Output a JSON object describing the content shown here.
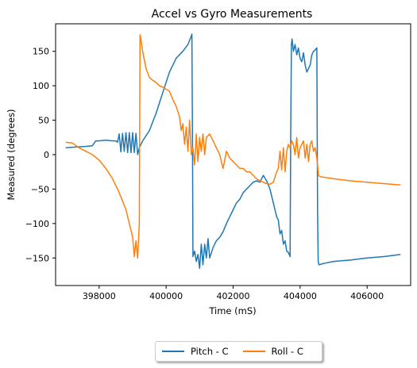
{
  "chart_data": {
    "type": "line",
    "title": "Accel vs Gyro Measurements",
    "xlabel": "Time (mS)",
    "ylabel": "Measured (degrees)",
    "xlim": [
      396700,
      407300
    ],
    "ylim": [
      -190,
      190
    ],
    "xticks": [
      398000,
      400000,
      402000,
      404000,
      406000
    ],
    "yticks": [
      -150,
      -100,
      -50,
      0,
      50,
      100,
      150
    ],
    "grid": false,
    "legend_position": "bottom-center-outside",
    "series": [
      {
        "name": "Pitch - C",
        "color": "#1f77b4",
        "x": [
          397000,
          397300,
          397600,
          397800,
          397900,
          398000,
          398200,
          398400,
          398500,
          398550,
          398600,
          398650,
          398700,
          398750,
          398800,
          398850,
          398900,
          398950,
          399000,
          399050,
          399100,
          399150,
          399200,
          399300,
          399500,
          399700,
          399900,
          400100,
          400300,
          400500,
          400650,
          400750,
          400770,
          400790,
          400800,
          400850,
          400900,
          400950,
          401000,
          401050,
          401100,
          401150,
          401200,
          401250,
          401300,
          401400,
          401500,
          401600,
          401700,
          401800,
          401900,
          402000,
          402100,
          402200,
          402300,
          402400,
          402500,
          402600,
          402700,
          402800,
          402900,
          403000,
          403100,
          403200,
          403250,
          403300,
          403350,
          403400,
          403450,
          403500,
          403550,
          403600,
          403650,
          403700,
          403720,
          403740,
          403760,
          403800,
          403850,
          403900,
          403950,
          404000,
          404050,
          404100,
          404150,
          404200,
          404250,
          404300,
          404350,
          404400,
          404450,
          404500,
          404520,
          404540,
          404560,
          404700,
          405000,
          405500,
          406000,
          406500,
          407000
        ],
        "y": [
          10,
          11,
          12,
          13,
          20,
          20,
          21,
          20,
          20,
          18,
          30,
          4,
          31,
          5,
          32,
          3,
          32,
          3,
          32,
          3,
          31,
          0,
          10,
          20,
          35,
          60,
          90,
          120,
          140,
          150,
          160,
          172,
          175,
          -20,
          -148,
          -140,
          -155,
          -145,
          -165,
          -130,
          -160,
          -130,
          -150,
          -122,
          -150,
          -135,
          -125,
          -120,
          -112,
          -100,
          -90,
          -80,
          -70,
          -65,
          -55,
          -50,
          -45,
          -40,
          -38,
          -40,
          -30,
          -38,
          -50,
          -70,
          -80,
          -90,
          -95,
          -115,
          -110,
          -130,
          -125,
          -140,
          -142,
          -148,
          30,
          160,
          168,
          150,
          160,
          145,
          155,
          140,
          135,
          148,
          130,
          120,
          125,
          130,
          145,
          150,
          152,
          155,
          -80,
          -155,
          -160,
          -158,
          -155,
          -153,
          -150,
          -148,
          -145
        ]
      },
      {
        "name": "Roll - C",
        "color": "#ff7f0e",
        "x": [
          397000,
          397200,
          397400,
          397600,
          397800,
          398000,
          398200,
          398400,
          398600,
          398800,
          398900,
          399000,
          399050,
          399100,
          399150,
          399200,
          399220,
          399240,
          399300,
          399400,
          399500,
          399600,
          399700,
          399800,
          399900,
          400000,
          400100,
          400200,
          400300,
          400400,
          400450,
          400500,
          400550,
          400600,
          400650,
          400700,
          400750,
          400800,
          400850,
          400900,
          400950,
          401000,
          401050,
          401100,
          401150,
          401200,
          401300,
          401400,
          401500,
          401600,
          401700,
          401800,
          401900,
          402000,
          402100,
          402200,
          402300,
          402400,
          402500,
          402600,
          402700,
          402800,
          402900,
          403000,
          403100,
          403200,
          403300,
          403350,
          403400,
          403450,
          403500,
          403550,
          403600,
          403650,
          403700,
          403750,
          403800,
          403850,
          403900,
          403950,
          404000,
          404050,
          404100,
          404150,
          404200,
          404250,
          404300,
          404350,
          404400,
          404450,
          404500,
          404550,
          404600,
          405000,
          405500,
          406000,
          406500,
          407000
        ],
        "y": [
          18,
          17,
          10,
          5,
          0,
          -8,
          -20,
          -35,
          -55,
          -80,
          -100,
          -120,
          -148,
          -125,
          -150,
          -100,
          174,
          170,
          150,
          125,
          112,
          108,
          105,
          100,
          98,
          95,
          92,
          80,
          70,
          55,
          35,
          45,
          15,
          40,
          5,
          50,
          0,
          10,
          -15,
          30,
          -10,
          25,
          5,
          30,
          0,
          25,
          30,
          20,
          10,
          0,
          -20,
          5,
          -5,
          -10,
          -15,
          -20,
          -20,
          -25,
          -25,
          -30,
          -35,
          -38,
          -40,
          -42,
          -43,
          -40,
          -25,
          -20,
          5,
          -22,
          10,
          -25,
          5,
          15,
          10,
          20,
          15,
          0,
          25,
          -5,
          10,
          15,
          20,
          -5,
          15,
          -10,
          15,
          20,
          5,
          10,
          -5,
          -30,
          -32,
          -35,
          -38,
          -40,
          -42,
          -44
        ]
      }
    ]
  }
}
